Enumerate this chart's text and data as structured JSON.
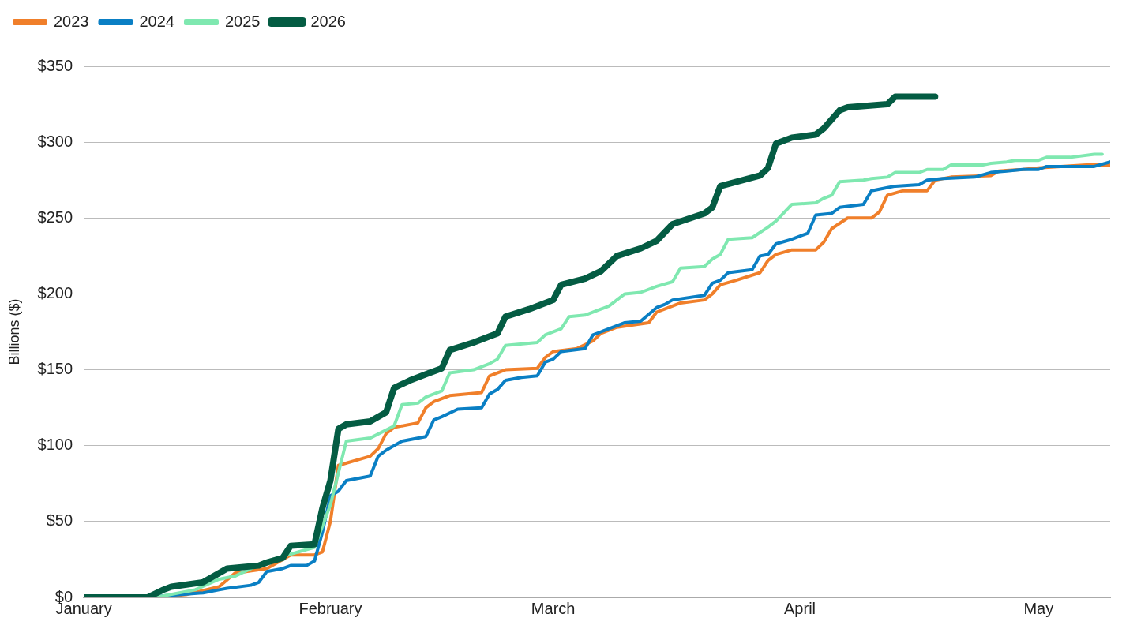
{
  "chart_data": {
    "type": "line",
    "ylabel": "Billions ($)",
    "xlim": [
      "--01-01",
      "--05-10"
    ],
    "ylim": [
      0,
      350
    ],
    "xticks": [
      {
        "value": "--01-01",
        "label": "January"
      },
      {
        "value": "--02-01",
        "label": "February"
      },
      {
        "value": "--03-01",
        "label": "March"
      },
      {
        "value": "--04-01",
        "label": "April"
      },
      {
        "value": "--05-01",
        "label": "May"
      }
    ],
    "yticks": [
      {
        "value": 0,
        "label": "$0"
      },
      {
        "value": 50,
        "label": "$50"
      },
      {
        "value": 100,
        "label": "$100"
      },
      {
        "value": 150,
        "label": "$150"
      },
      {
        "value": 200,
        "label": "$200"
      },
      {
        "value": 250,
        "label": "$250"
      },
      {
        "value": 300,
        "label": "$300"
      },
      {
        "value": 350,
        "label": "$350"
      }
    ],
    "grid": "y",
    "legend": "top left",
    "marker": "none",
    "line_style": "solid",
    "series": [
      {
        "name": "2023",
        "color": "#f07f2a",
        "x": [
          "--01-01",
          "--01-10",
          "--01-14",
          "--01-18",
          "--01-20",
          "--01-24",
          "--01-27",
          "--01-30",
          "--01-31",
          "--02-01",
          "--02-02",
          "--02-06",
          "--02-07",
          "--02-08",
          "--02-09",
          "--02-12",
          "--02-13",
          "--02-14",
          "--02-16",
          "--02-20",
          "--02-21",
          "--02-23",
          "--02-27",
          "--02-28",
          "--03-01",
          "--03-04",
          "--03-06",
          "--03-07",
          "--03-09",
          "--03-13",
          "--03-14",
          "--03-15",
          "--03-17",
          "--03-20",
          "--03-21",
          "--03-22",
          "--03-24",
          "--03-27",
          "--03-28",
          "--03-29",
          "--03-31",
          "--04-03",
          "--04-04",
          "--04-05",
          "--04-07",
          "--04-10",
          "--04-11",
          "--04-12",
          "--04-14",
          "--04-17",
          "--04-18",
          "--04-20",
          "--04-25",
          "--04-26",
          "--04-29",
          "--05-01",
          "--05-07",
          "--05-10"
        ],
        "values": [
          0,
          0,
          2,
          7,
          16,
          19,
          28,
          28,
          30,
          50,
          87,
          93,
          98,
          108,
          112,
          115,
          125,
          129,
          133,
          135,
          146,
          150,
          151,
          158,
          162,
          164,
          169,
          174,
          178,
          181,
          188,
          190,
          194,
          196,
          200,
          206,
          209,
          214,
          222,
          226,
          229,
          229,
          234,
          243,
          250,
          250,
          254,
          265,
          268,
          268,
          275,
          277,
          278,
          281,
          282,
          283,
          285,
          285
        ]
      },
      {
        "name": "2024",
        "color": "#0a7fc4",
        "x": [
          "--01-01",
          "--01-10",
          "--01-11",
          "--01-16",
          "--01-18",
          "--01-19",
          "--01-22",
          "--01-23",
          "--01-24",
          "--01-26",
          "--01-27",
          "--01-29",
          "--01-30",
          "--01-31",
          "--02-01",
          "--02-02",
          "--02-03",
          "--02-06",
          "--02-07",
          "--02-08",
          "--02-10",
          "--02-13",
          "--02-14",
          "--02-15",
          "--02-17",
          "--02-20",
          "--02-21",
          "--02-22",
          "--02-23",
          "--02-25",
          "--02-27",
          "--02-28",
          "--03-01",
          "--03-02",
          "--03-05",
          "--03-06",
          "--03-07",
          "--03-10",
          "--03-12",
          "--03-14",
          "--03-15",
          "--03-16",
          "--03-20",
          "--03-21",
          "--03-22",
          "--03-23",
          "--03-26",
          "--03-27",
          "--03-28",
          "--03-29",
          "--03-31",
          "--04-02",
          "--04-03",
          "--04-05",
          "--04-06",
          "--04-09",
          "--04-10",
          "--04-12",
          "--04-13",
          "--04-16",
          "--04-17",
          "--04-19",
          "--04-23",
          "--04-25",
          "--04-27",
          "--04-29",
          "--05-01",
          "--05-02",
          "--05-08",
          "--05-10"
        ],
        "values": [
          0,
          0,
          1,
          3,
          5,
          6,
          8,
          10,
          17,
          19,
          21,
          21,
          24,
          43,
          67,
          70,
          77,
          80,
          93,
          97,
          103,
          106,
          117,
          119,
          124,
          125,
          134,
          137,
          143,
          145,
          146,
          155,
          157,
          162,
          164,
          173,
          175,
          181,
          182,
          191,
          193,
          196,
          199,
          207,
          209,
          214,
          216,
          225,
          226,
          233,
          236,
          240,
          252,
          253,
          257,
          259,
          268,
          270,
          271,
          272,
          275,
          276,
          277,
          280,
          281,
          282,
          282,
          284,
          284,
          287
        ]
      },
      {
        "name": "2025",
        "color": "#7fe8b0",
        "x": [
          "--01-01",
          "--01-10",
          "--01-15",
          "--01-18",
          "--01-20",
          "--01-24",
          "--01-30",
          "--02-01",
          "--02-03",
          "--02-06",
          "--02-09",
          "--02-10",
          "--02-12",
          "--02-13",
          "--02-15",
          "--02-16",
          "--02-19",
          "--02-21",
          "--02-22",
          "--02-23",
          "--02-27",
          "--02-28",
          "--03-02",
          "--03-03",
          "--03-05",
          "--03-07",
          "--03-08",
          "--03-10",
          "--03-12",
          "--03-14",
          "--03-16",
          "--03-17",
          "--03-20",
          "--03-21",
          "--03-22",
          "--03-23",
          "--03-26",
          "--03-28",
          "--03-29",
          "--03-31",
          "--04-03",
          "--04-04",
          "--04-05",
          "--04-06",
          "--04-09",
          "--04-10",
          "--04-12",
          "--04-13",
          "--04-16",
          "--04-17",
          "--04-19",
          "--04-20",
          "--04-24",
          "--04-25",
          "--04-27",
          "--04-28",
          "--05-01",
          "--05-02",
          "--05-05",
          "--05-08",
          "--05-09"
        ],
        "values": [
          0,
          0,
          5,
          12,
          14,
          24,
          33,
          61,
          103,
          105,
          113,
          127,
          128,
          132,
          136,
          148,
          150,
          154,
          157,
          166,
          168,
          173,
          177,
          185,
          186,
          190,
          192,
          200,
          201,
          205,
          208,
          217,
          218,
          223,
          226,
          236,
          237,
          244,
          248,
          259,
          260,
          263,
          265,
          274,
          275,
          276,
          277,
          280,
          280,
          282,
          282,
          285,
          285,
          286,
          287,
          288,
          288,
          290,
          290,
          292,
          292
        ]
      },
      {
        "name": "2026",
        "color": "#045c43",
        "x": [
          "--01-01",
          "--01-09",
          "--01-11",
          "--01-12",
          "--01-16",
          "--01-17",
          "--01-19",
          "--01-23",
          "--01-24",
          "--01-26",
          "--01-27",
          "--01-30",
          "--01-31",
          "--02-01",
          "--02-02",
          "--02-03",
          "--02-06",
          "--02-08",
          "--02-09",
          "--02-11",
          "--02-13",
          "--02-15",
          "--02-16",
          "--02-19",
          "--02-21",
          "--02-22",
          "--02-23",
          "--02-26",
          "--02-28",
          "--03-01",
          "--03-02",
          "--03-05",
          "--03-07",
          "--03-09",
          "--03-12",
          "--03-14",
          "--03-16",
          "--03-20",
          "--03-21",
          "--03-22",
          "--03-27",
          "--03-28",
          "--03-29",
          "--03-31",
          "--04-03",
          "--04-04",
          "--04-06",
          "--04-07",
          "--04-12",
          "--04-13",
          "--04-14",
          "--04-18"
        ],
        "values": [
          0,
          0,
          5,
          7,
          10,
          13,
          19,
          21,
          23,
          26,
          34,
          35,
          59,
          77,
          111,
          114,
          116,
          122,
          138,
          143,
          147,
          151,
          163,
          168,
          172,
          174,
          185,
          190,
          194,
          196,
          206,
          210,
          215,
          225,
          230,
          235,
          246,
          253,
          257,
          271,
          278,
          283,
          299,
          303,
          305,
          309,
          321,
          323,
          325,
          330,
          330,
          330
        ]
      }
    ]
  }
}
